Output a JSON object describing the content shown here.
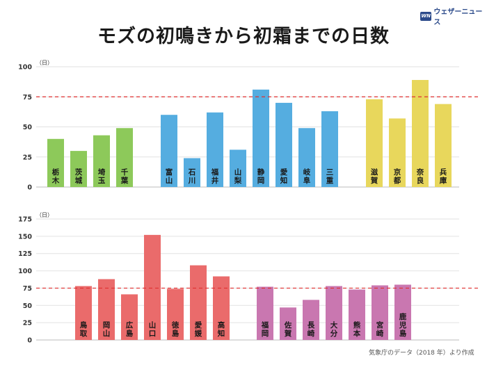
{
  "title": "モズの初鳴きから初霜までの日数",
  "brand": {
    "mark": "WN",
    "name": "ウェザーニュース"
  },
  "source": "気象庁のデータ（2018 年）より作成",
  "reference_line_color": "#e03030",
  "chart_data": [
    {
      "type": "bar",
      "ylabel": "（日）",
      "ylim": [
        0,
        100
      ],
      "yticks": [
        0,
        25,
        50,
        75,
        100
      ],
      "reference_line": 75,
      "grid": true,
      "groups": [
        {
          "color": "#8dc95a",
          "categories": [
            "栃木",
            "茨城",
            "埼玉",
            "千葉"
          ],
          "values": [
            40,
            30,
            43,
            49
          ]
        },
        {
          "color": "#55ade0",
          "categories": [
            "富山",
            "石川",
            "福井",
            "山梨",
            "静岡",
            "愛知",
            "岐阜",
            "三重"
          ],
          "values": [
            60,
            24,
            62,
            31,
            81,
            70,
            49,
            63
          ]
        },
        {
          "color": "#e8d75c",
          "categories": [
            "滋賀",
            "京都",
            "奈良",
            "兵庫"
          ],
          "values": [
            73,
            57,
            89,
            69
          ]
        }
      ]
    },
    {
      "type": "bar",
      "ylabel": "（日）",
      "ylim": [
        0,
        175
      ],
      "yticks": [
        0,
        25,
        50,
        75,
        100,
        125,
        150,
        175
      ],
      "reference_line": 75,
      "grid": true,
      "groups": [
        {
          "color": "#ea6b6b",
          "categories": [
            "鳥取",
            "岡山",
            "広島",
            "山口",
            "徳島",
            "愛媛",
            "高知"
          ],
          "values": [
            78,
            88,
            66,
            152,
            74,
            108,
            92
          ]
        },
        {
          "color": "#c977b0",
          "categories": [
            "福岡",
            "佐賀",
            "長崎",
            "大分",
            "熊本",
            "宮崎",
            "鹿児島"
          ],
          "values": [
            77,
            47,
            58,
            78,
            73,
            79,
            80
          ]
        }
      ]
    }
  ]
}
